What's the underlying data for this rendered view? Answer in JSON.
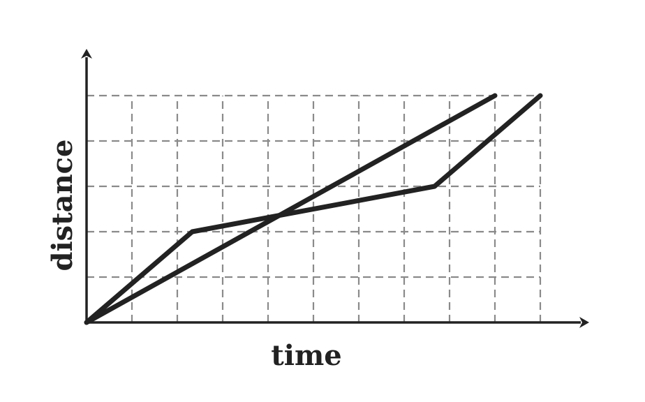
{
  "chart_data": {
    "type": "line",
    "title": "",
    "xlabel": "time",
    "ylabel": "distance",
    "xlim": [
      0,
      10
    ],
    "ylim": [
      0,
      5
    ],
    "grid": true,
    "legend": "none",
    "colors": {
      "series": "#222222",
      "axis": "#222222",
      "grid": "#8a8a8a"
    },
    "series": [
      {
        "x": [
          0,
          2.33,
          7.67,
          10
        ],
        "y": [
          0,
          2,
          3,
          5
        ]
      },
      {
        "x": [
          0,
          9
        ],
        "y": [
          0,
          5
        ]
      }
    ]
  }
}
